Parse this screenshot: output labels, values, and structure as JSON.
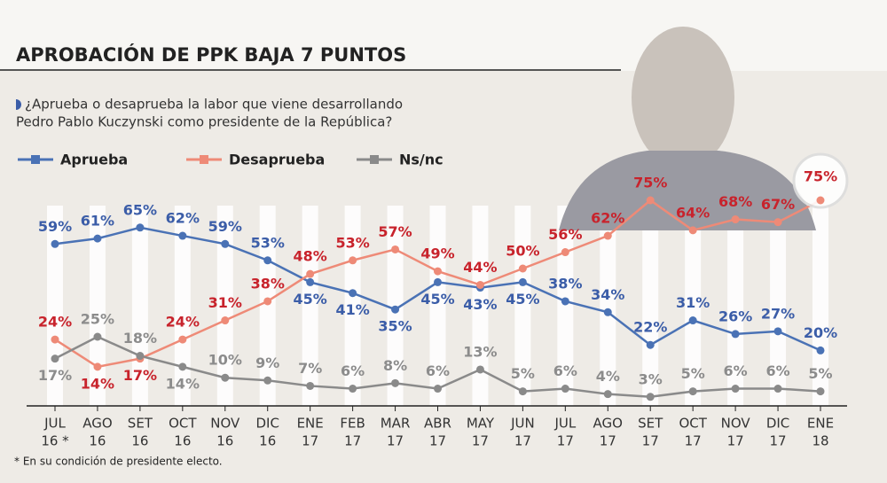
{
  "chart_data": {
    "type": "line",
    "title": "APROBACIÓN DE PPK BAJA 7 PUNTOS",
    "subtitle": [
      "¿Aprueba o desaprueba la labor que viene desarrollando",
      "Pedro Pablo Kuczynski como presidente de la República?"
    ],
    "footnote": "* En su condición de presidente electo.",
    "categories": [
      [
        "JUL",
        "16 *"
      ],
      [
        "AGO",
        "16"
      ],
      [
        "SET",
        "16"
      ],
      [
        "OCT",
        "16"
      ],
      [
        "NOV",
        "16"
      ],
      [
        "DIC",
        "16"
      ],
      [
        "ENE",
        "17"
      ],
      [
        "FEB",
        "17"
      ],
      [
        "MAR",
        "17"
      ],
      [
        "ABR",
        "17"
      ],
      [
        "MAY",
        "17"
      ],
      [
        "JUN",
        "17"
      ],
      [
        "JUL",
        "17"
      ],
      [
        "AGO",
        "17"
      ],
      [
        "SET",
        "17"
      ],
      [
        "OCT",
        "17"
      ],
      [
        "NOV",
        "17"
      ],
      [
        "DIC",
        "17"
      ],
      [
        "ENE",
        "18"
      ]
    ],
    "series": [
      {
        "name": "Aprueba",
        "color": "#4a72b5",
        "label_color": "#3b5da8",
        "values": [
          59,
          61,
          65,
          62,
          59,
          53,
          45,
          41,
          35,
          45,
          43,
          45,
          38,
          34,
          22,
          31,
          26,
          27,
          20
        ],
        "value_labels": [
          "59%",
          "61%",
          "65%",
          "62%",
          "59%",
          "53%",
          "45%",
          "41%",
          "35%",
          "45%",
          "43%",
          "45%",
          "38%",
          "34%",
          "22%",
          "31%",
          "26%",
          "27%",
          "20%"
        ]
      },
      {
        "name": "Desaprueba",
        "color": "#ee8a77",
        "label_color": "#c8232c",
        "values": [
          24,
          14,
          17,
          24,
          31,
          38,
          48,
          53,
          57,
          49,
          44,
          50,
          56,
          62,
          75,
          64,
          68,
          67,
          75
        ],
        "value_labels": [
          "24%",
          "14%",
          "17%",
          "24%",
          "31%",
          "38%",
          "48%",
          "53%",
          "57%",
          "49%",
          "44%",
          "50%",
          "56%",
          "62%",
          "75%",
          "64%",
          "68%",
          "67%",
          "75%"
        ]
      },
      {
        "name": "Ns/nc",
        "color": "#8a8a8a",
        "label_color": "#8c8c8c",
        "values": [
          17,
          25,
          18,
          14,
          10,
          9,
          7,
          6,
          8,
          6,
          13,
          5,
          6,
          4,
          3,
          5,
          6,
          6,
          5
        ],
        "value_labels": [
          "17%",
          "25%",
          "18%",
          "14%",
          "10%",
          "9%",
          "7%",
          "6%",
          "8%",
          "6%",
          "13%",
          "5%",
          "6%",
          "4%",
          "3%",
          "5%",
          "6%",
          "6%",
          "5%"
        ]
      }
    ]
  }
}
